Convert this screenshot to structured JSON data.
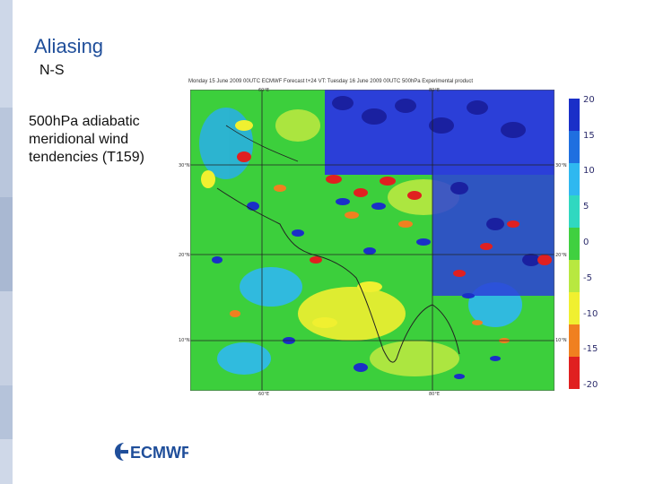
{
  "slide": {
    "title": "Aliasing",
    "subtitle": "N-S",
    "description": "500hPa adiabatic\nmeridional wind\ntendencies (T159)",
    "logo_text": "ECMWF",
    "logo_icon": "ecmwf-swirl-icon",
    "accent_color": "#1f4e9a",
    "rail_colors": [
      "#cdd7e8",
      "#b9c6dc",
      "#a9b8d2",
      "#c6d0e2",
      "#b5c3da",
      "#cfd8e8"
    ]
  },
  "figure": {
    "header": "Monday 15 June 2009 00UTC ECMWF Forecast t+24 VT: Tuesday 16 June 2009 00UTC 500hPa Experimental product",
    "lon_labels": [
      "60°E",
      "80°E"
    ],
    "lat_labels": [
      "30°N",
      "20°N",
      "10°N"
    ],
    "colorbar": {
      "labels": [
        "20",
        "15",
        "10",
        "5",
        "0",
        "-5",
        "-10",
        "-15",
        "-20"
      ],
      "colors": [
        "#1a2fc8",
        "#1f6fe0",
        "#2fb8f0",
        "#30d8c0",
        "#40d040",
        "#b8e840",
        "#f0f030",
        "#f08020",
        "#e02020"
      ]
    }
  }
}
